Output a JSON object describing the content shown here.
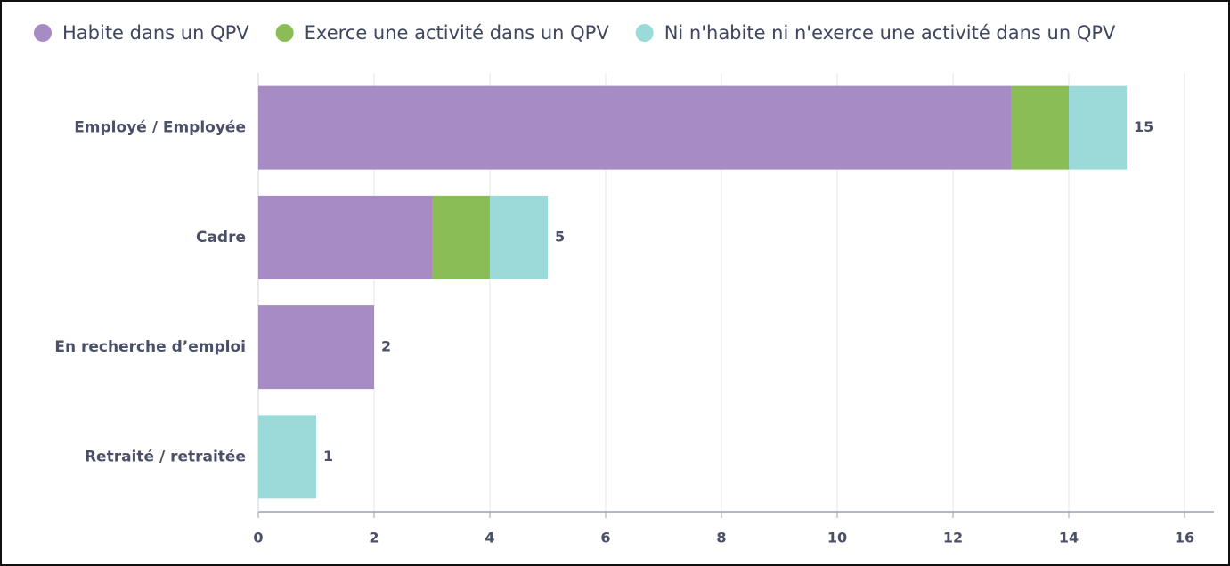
{
  "chart_data": {
    "type": "stacked_barh",
    "categories": [
      "Employé / Employée",
      "Cadre",
      "En recherche d’emploi",
      "Retraité / retraitée"
    ],
    "series": [
      {
        "name": "Habite dans un QPV",
        "color": "#a78bc4",
        "values": [
          13,
          3,
          2,
          0
        ]
      },
      {
        "name": "Exerce une activité dans un QPV",
        "color": "#8bbd56",
        "values": [
          1,
          1,
          0,
          0
        ]
      },
      {
        "name": "Ni n'habite ni n'exerce une activité dans un QPV",
        "color": "#9cdada",
        "values": [
          1,
          1,
          0,
          1
        ]
      }
    ],
    "totals": [
      15,
      5,
      2,
      1
    ],
    "xlim": [
      0,
      16
    ],
    "xticks": [
      0,
      2,
      4,
      6,
      8,
      10,
      12,
      14,
      16
    ],
    "grid": true,
    "legend": "top"
  }
}
